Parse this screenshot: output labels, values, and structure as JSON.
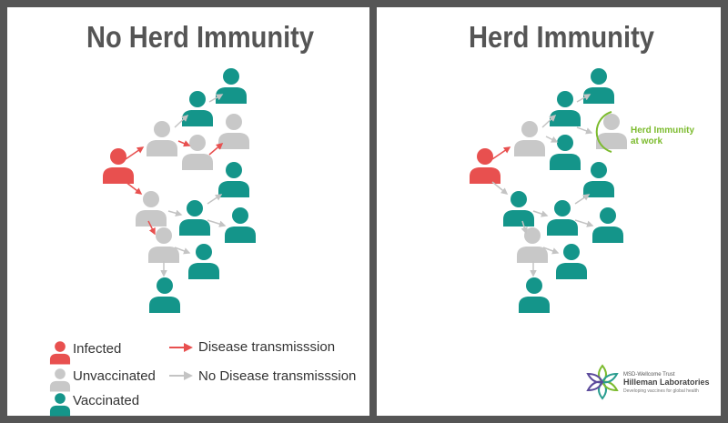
{
  "left_panel": {
    "title": "No Herd Immunity"
  },
  "right_panel": {
    "title": "Herd Immunity",
    "annotation": {
      "line1": "Herd Immunity",
      "line2": "at work"
    }
  },
  "legend": {
    "infected": "Infected",
    "unvaccinated": "Unvaccinated",
    "vaccinated": "Vaccinated",
    "transmission": "Disease transmisssion",
    "no_transmission": "No Disease transmisssion"
  },
  "logo": {
    "org": "MSD-Wellcome Trust",
    "name": "Hilleman Laboratories",
    "tagline": "Developing vaccines for global health"
  }
}
